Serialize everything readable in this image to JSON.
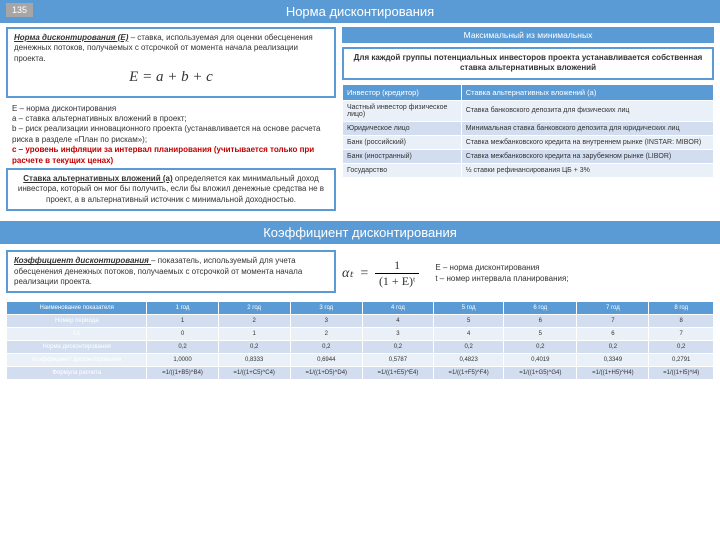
{
  "slide_number": "135",
  "title1": "Норма дисконтирования",
  "title2": "Коэффициент дисконтирования",
  "def1_lead": "Норма дисконтирования (E)",
  "def1_rest": " – ставка, используемая для оценки обесценения денежных потоков, получаемых с отсрочкой от момента начала реализации проекта.",
  "formula1": "E = a + b + c",
  "legend_e": "Е – норма дисконтирования",
  "legend_a": "a – ставка альтернативных вложений в проект;",
  "legend_b": "b – риск реализации инновационного проекта (устанавливается на основе расчета риска в разделе «План по рискам»);",
  "legend_c": "c – уровень инфляции за интервал планирования (учитывается только при расчете в текущих ценах)",
  "alt_lead": "Ставка альтернативных вложений (a)",
  "alt_rest": " определяется как минимальный доход инвестора, который он мог бы получить, если бы вложил денежные средства не в проект, а в альтернативный источник с минимальной доходностью.",
  "max_title": "Максимальный из минимальных",
  "band_text": "Для каждой группы потенциальных инвесторов проекта устанавливается собственная ставка альтернативных вложений",
  "t1_h1": "Инвестор (кредитор)",
  "t1_h2": "Ставка альтернативных вложений (a)",
  "t1": [
    [
      "Частный инвестор физическое лицо)",
      "Ставка банковского депозита для физических лиц"
    ],
    [
      "Юридическое лицо",
      "Минимальная ставка банковского депозита для юридических лиц"
    ],
    [
      "Банк (российский)",
      "Ставка межбанковского кредита на внутреннем рынке (INSTAR: MIBOR)"
    ],
    [
      "Банк (иностранный)",
      "Ставка межбанковского кредита на зарубежном рынке (LIBOR)"
    ],
    [
      "Государство",
      "½ ставки рефинансирования ЦБ + 3%"
    ]
  ],
  "def2_lead": "Коэффициент дисконтирования ",
  "def2_rest": " – показатель, используемый для учета обесценения денежных потоков, получаемых с отсрочкой от момента начала реализации проекта.",
  "f2_left": "αₜ",
  "f2_eq": "=",
  "f2_num": "1",
  "f2_den": "(1 + E)ᵗ",
  "legend2_e": "Е – норма дисконтирования",
  "legend2_t": "t – номер интервала планирования;",
  "t2_cols": [
    "Наименование показателя",
    "1 год",
    "2 год",
    "3 год",
    "4 год",
    "5 год",
    "6 год",
    "7 год",
    "8 год"
  ],
  "t2_rows": [
    [
      "Номер периода",
      "1",
      "2",
      "3",
      "4",
      "5",
      "6",
      "7",
      "8"
    ],
    [
      "t-1",
      "0",
      "1",
      "2",
      "3",
      "4",
      "5",
      "6",
      "7"
    ],
    [
      "Норма дисконтирования",
      "0,2",
      "0,2",
      "0,2",
      "0,2",
      "0,2",
      "0,2",
      "0,2",
      "0,2"
    ],
    [
      "Коэффициент дисконтирования",
      "1,0000",
      "0,8333",
      "0,6944",
      "0,5787",
      "0,4823",
      "0,4019",
      "0,3349",
      "0,2791"
    ],
    [
      "Формула расчета",
      "=1/((1+B5)^B4)",
      "=1/((1+C5)^C4)",
      "=1/((1+D5)^D4)",
      "=1/((1+E5)^E4)",
      "=1/((1+F5)^F4)",
      "=1/((1+G5)^G4)",
      "=1/((1+H5)^H4)",
      "=1/((1+I5)^I4)"
    ]
  ]
}
